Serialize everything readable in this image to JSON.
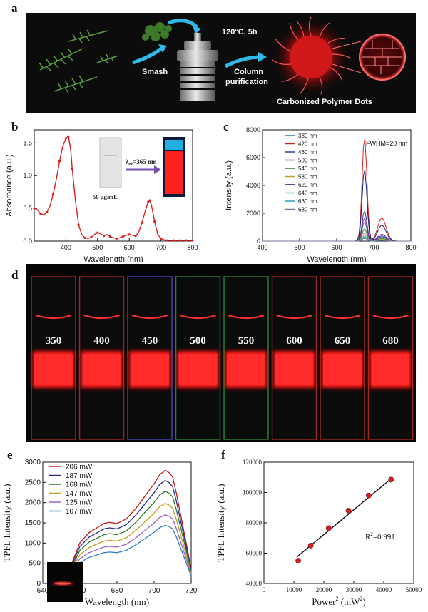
{
  "panels": {
    "a": "a",
    "b": "b",
    "c": "c",
    "d": "d",
    "e": "e",
    "f": "f"
  },
  "panel_a": {
    "smash_label": "Smash",
    "condition_label": "120°C, 5h",
    "purification_label_1": "Column",
    "purification_label_2": "purification",
    "product_label": "Carbonized Polymer Dots"
  },
  "panel_b_inset": {
    "concentration": "50 μg/mL",
    "excitation_prefix": "λ",
    "excitation_sub": "ex",
    "excitation_value": "=365 nm"
  },
  "panel_d": {
    "labels": [
      "350",
      "400",
      "450",
      "500",
      "550",
      "600",
      "650",
      "680"
    ],
    "rim_colors": [
      "#d63a2a",
      "#d63a2a",
      "#5a5aff",
      "#3ab04a",
      "#3ab04a",
      "#d63a2a",
      "#d63a2a",
      "#d63a2a"
    ]
  },
  "chart_data": [
    {
      "id": "b",
      "type": "line",
      "xlabel": "Wavelength (nm)",
      "ylabel": "Absorbance (a.u.)",
      "xlim": [
        300,
        800
      ],
      "ylim": [
        0.0,
        1.7
      ],
      "xticks": [
        400,
        500,
        600,
        700,
        800
      ],
      "yticks": [
        0.0,
        0.5,
        1.0,
        1.5
      ],
      "ytick_labels": [
        "0.0",
        "0.5",
        "1.0",
        "1.5"
      ],
      "series": [
        {
          "color": "#d62020",
          "x": [
            300,
            310,
            320,
            330,
            340,
            350,
            360,
            370,
            380,
            390,
            400,
            408,
            415,
            420,
            430,
            440,
            450,
            460,
            470,
            480,
            490,
            500,
            510,
            520,
            530,
            540,
            550,
            560,
            570,
            580,
            590,
            600,
            610,
            620,
            630,
            640,
            650,
            660,
            665,
            670,
            680,
            690,
            700,
            710,
            720,
            740,
            760,
            780,
            800
          ],
          "y": [
            0.5,
            0.48,
            0.42,
            0.4,
            0.44,
            0.54,
            0.72,
            0.95,
            1.22,
            1.45,
            1.57,
            1.6,
            1.4,
            1.1,
            0.62,
            0.25,
            0.1,
            0.05,
            0.04,
            0.06,
            0.1,
            0.13,
            0.11,
            0.08,
            0.1,
            0.07,
            0.05,
            0.04,
            0.05,
            0.07,
            0.09,
            0.1,
            0.09,
            0.08,
            0.14,
            0.28,
            0.45,
            0.6,
            0.62,
            0.55,
            0.3,
            0.1,
            0.04,
            0.02,
            0.01,
            0.01,
            0.01,
            0.01,
            0.01
          ]
        }
      ]
    },
    {
      "id": "c",
      "type": "line",
      "xlabel": "Wavelength (nm)",
      "ylabel": "Intensity (a.u.)",
      "xlim": [
        400,
        800
      ],
      "ylim": [
        0,
        8000
      ],
      "xticks": [
        400,
        500,
        600,
        700,
        800
      ],
      "yticks": [
        0,
        2000,
        4000,
        6000,
        8000
      ],
      "annotation": "FWHM=20 nm",
      "peak_x": 675,
      "series": [
        {
          "name": "380 nm",
          "color": "#3b6fb5",
          "peak": 1400
        },
        {
          "name": "420 nm",
          "color": "#d62020",
          "peak": 7500
        },
        {
          "name": "460 nm",
          "color": "#3c3c9c",
          "peak": 2200
        },
        {
          "name": "500 nm",
          "color": "#8a2aa0",
          "peak": 1700
        },
        {
          "name": "540 nm",
          "color": "#2a7a3a",
          "peak": 900
        },
        {
          "name": "580 nm",
          "color": "#c0a030",
          "peak": 600
        },
        {
          "name": "620 nm",
          "color": "#1a1a6a",
          "peak": 5200
        },
        {
          "name": "640 nm",
          "color": "#50b0a0",
          "peak": 400
        },
        {
          "name": "660 nm",
          "color": "#2aa0c0",
          "peak": 300
        },
        {
          "name": "680 nm",
          "color": "#707090",
          "peak": 200
        }
      ]
    },
    {
      "id": "e",
      "type": "line",
      "xlabel": "Wavelength (nm)",
      "ylabel": "TPFL Intensity (a.u.)",
      "xlim": [
        640,
        720
      ],
      "ylim": [
        0,
        3000
      ],
      "xticks": [
        640,
        660,
        680,
        700,
        720
      ],
      "yticks": [
        0,
        500,
        1000,
        1500,
        2000,
        2500,
        3000
      ],
      "shape_x": [
        640,
        645,
        650,
        655,
        660,
        665,
        670,
        673,
        676,
        680,
        685,
        690,
        695,
        700,
        703,
        706,
        708,
        710,
        712,
        715,
        718,
        720
      ],
      "shape_y": [
        0.0,
        0.0,
        0.02,
        0.15,
        0.36,
        0.45,
        0.5,
        0.53,
        0.54,
        0.53,
        0.57,
        0.66,
        0.77,
        0.88,
        0.96,
        1.0,
        0.98,
        0.94,
        0.8,
        0.55,
        0.3,
        0.12
      ],
      "series": [
        {
          "name": "206 mW",
          "color": "#c01818",
          "peak": 2800
        },
        {
          "name": "187 mW",
          "color": "#2a2a8a",
          "peak": 2550
        },
        {
          "name": "168 mW",
          "color": "#2a7a2a",
          "peak": 2280
        },
        {
          "name": "147 mW",
          "color": "#c0a020",
          "peak": 1980
        },
        {
          "name": "125 mW",
          "color": "#a060c0",
          "peak": 1700
        },
        {
          "name": "107 mW",
          "color": "#3080c0",
          "peak": 1440
        }
      ]
    },
    {
      "id": "f",
      "type": "scatter",
      "xlabel_main": "Power",
      "xlabel_sup": "2",
      "xlabel_unit": " (mW",
      "xlabel_unit_sup": "2",
      "xlabel_close": ")",
      "ylabel": "TPFL Intensity (a.u.)",
      "xlim": [
        0,
        50000
      ],
      "ylim": [
        40000,
        120000
      ],
      "xticks": [
        0,
        10000,
        20000,
        30000,
        40000,
        50000
      ],
      "yticks": [
        40000,
        60000,
        80000,
        100000,
        120000
      ],
      "annotation_main": "R",
      "annotation_sup": "2",
      "annotation_rest": "=0.991",
      "x": [
        11449,
        15625,
        21609,
        28224,
        34969,
        42436
      ],
      "y": [
        55000,
        65000,
        76500,
        88000,
        98000,
        108500
      ],
      "fit": {
        "x": [
          11000,
          43000
        ],
        "y": [
          57500,
          110000
        ]
      }
    }
  ]
}
